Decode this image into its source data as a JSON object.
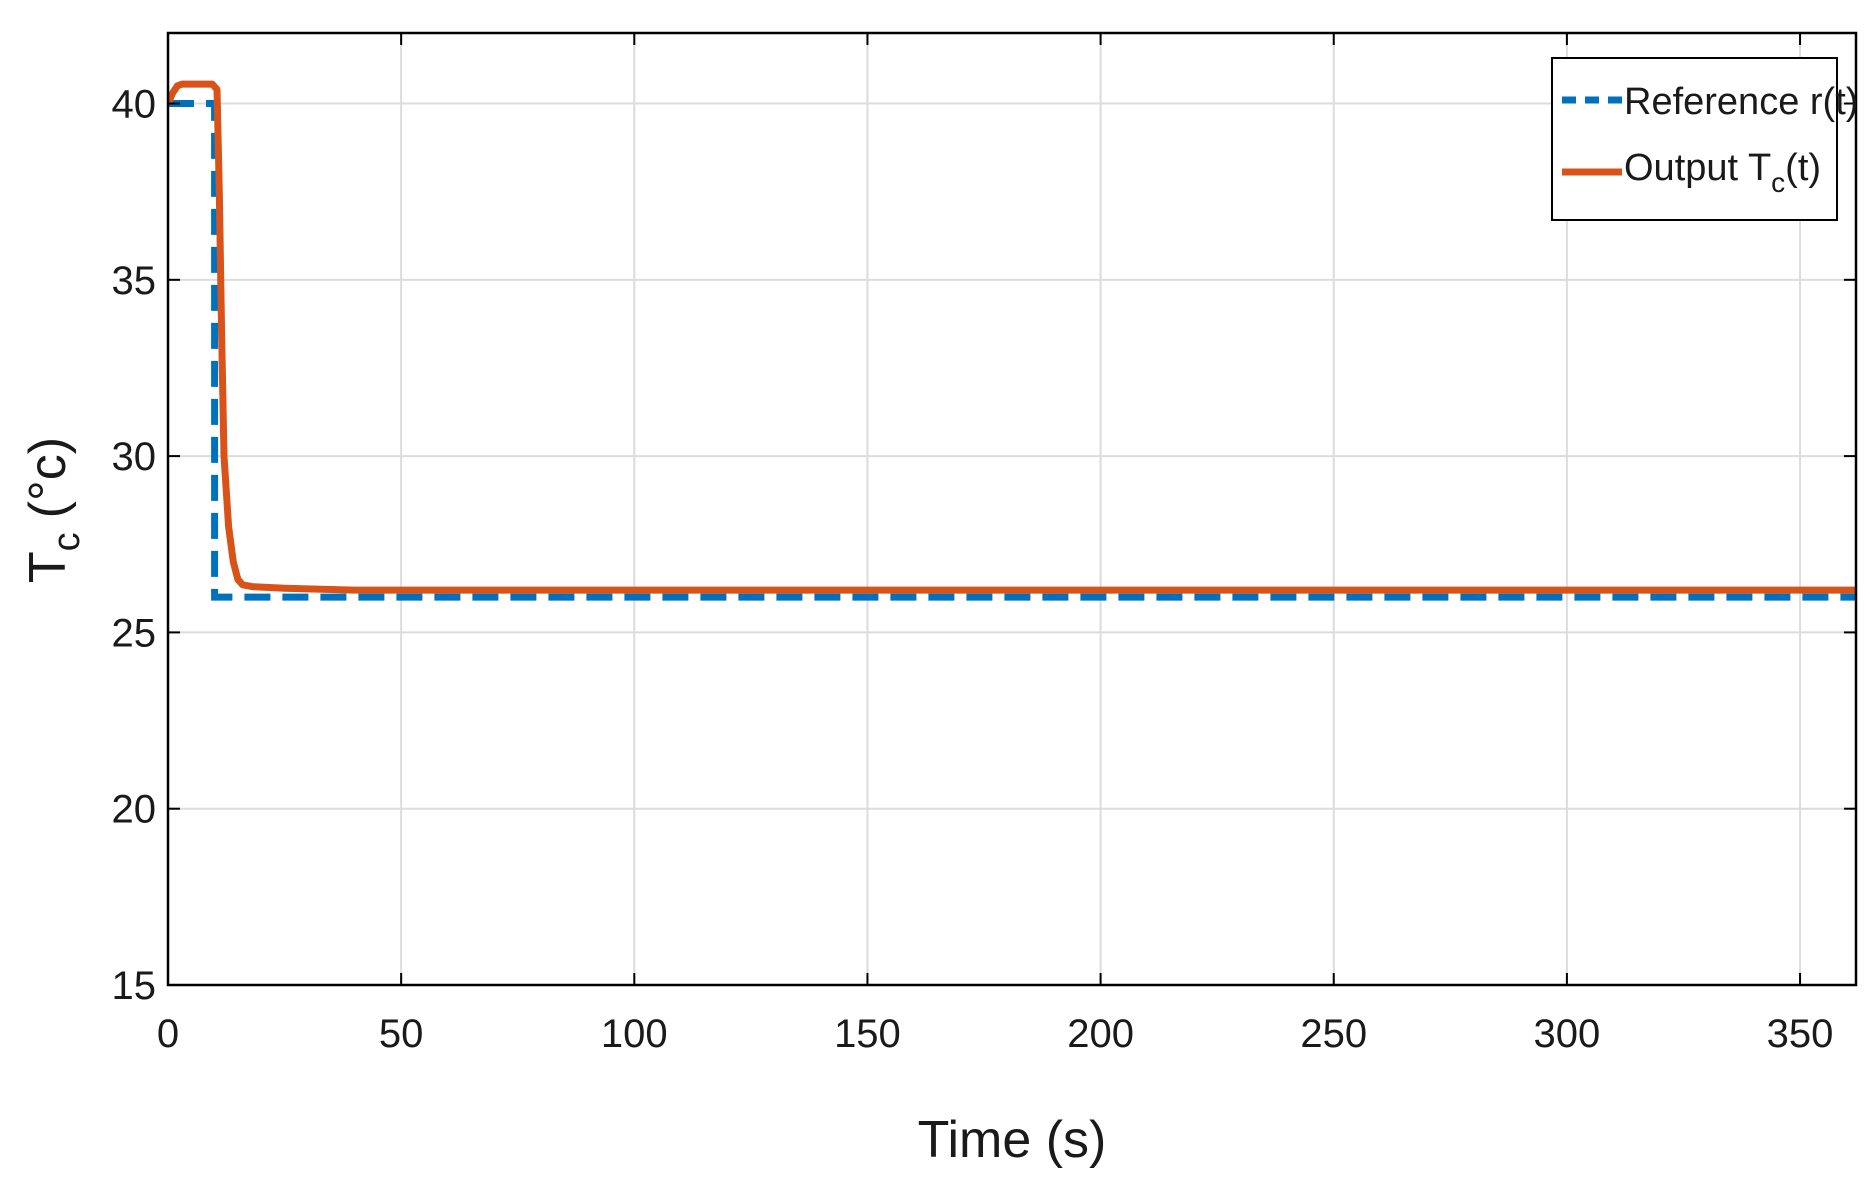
{
  "chart_data": {
    "type": "line",
    "xlabel": "Time (s)",
    "ylabel": {
      "main": "T",
      "sub": "c",
      "unit": "(°c)"
    },
    "xlim": [
      0,
      362
    ],
    "ylim": [
      15,
      42
    ],
    "xticks": [
      0,
      50,
      100,
      150,
      200,
      250,
      300,
      350
    ],
    "yticks": [
      15,
      20,
      25,
      30,
      35,
      40
    ],
    "grid": true,
    "legend_position": "top-right",
    "series": [
      {
        "name": "Reference r(t)",
        "style": "dashed",
        "color": "#0072BD",
        "x": [
          0,
          10,
          10,
          362
        ],
        "y": [
          40,
          40,
          26,
          26
        ]
      },
      {
        "name": {
          "main": "Output T",
          "sub": "c",
          "tail": "(t)"
        },
        "style": "solid",
        "color": "#D95319",
        "x": [
          0,
          1,
          2,
          3,
          9.5,
          10.5,
          11,
          11.5,
          12,
          13,
          14,
          15,
          16,
          18,
          25,
          40,
          362
        ],
        "y": [
          40,
          40.3,
          40.5,
          40.55,
          40.55,
          40.4,
          37.5,
          33.5,
          30,
          28,
          27,
          26.5,
          26.35,
          26.3,
          26.25,
          26.2,
          26.2
        ]
      }
    ]
  }
}
